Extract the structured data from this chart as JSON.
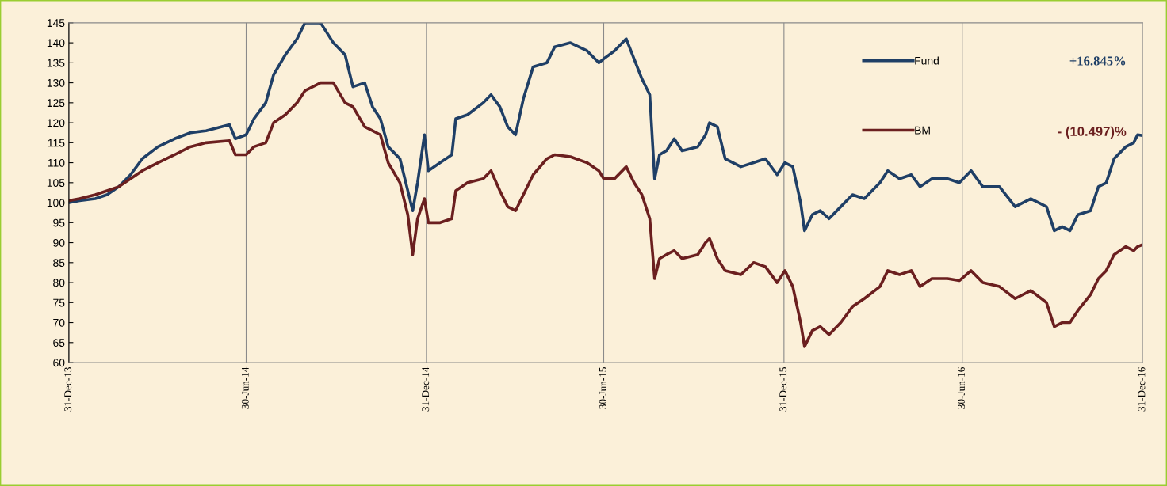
{
  "chart_data": {
    "type": "line",
    "x": [
      "2013-12-31",
      "2014-01-11",
      "2014-01-27",
      "2014-02-08",
      "2014-02-20",
      "2014-03-04",
      "2014-03-16",
      "2014-04-01",
      "2014-04-18",
      "2014-05-04",
      "2014-05-20",
      "2014-06-13",
      "2014-06-19",
      "2014-06-30",
      "2014-07-08",
      "2014-07-20",
      "2014-07-28",
      "2014-08-09",
      "2014-08-21",
      "2014-08-29",
      "2014-09-14",
      "2014-09-27",
      "2014-10-09",
      "2014-10-17",
      "2014-10-29",
      "2014-11-06",
      "2014-11-14",
      "2014-11-22",
      "2014-12-04",
      "2014-12-12",
      "2014-12-17",
      "2014-12-22",
      "2014-12-29",
      "2015-01-02",
      "2015-01-14",
      "2015-01-26",
      "2015-01-30",
      "2015-02-11",
      "2015-02-27",
      "2015-03-07",
      "2015-03-16",
      "2015-03-24",
      "2015-04-01",
      "2015-04-09",
      "2015-04-19",
      "2015-05-03",
      "2015-05-11",
      "2015-05-27",
      "2015-06-13",
      "2015-06-25",
      "2015-06-30",
      "2015-07-11",
      "2015-07-23",
      "2015-07-31",
      "2015-08-08",
      "2015-08-16",
      "2015-08-21",
      "2015-08-26",
      "2015-09-02",
      "2015-09-10",
      "2015-09-18",
      "2015-10-04",
      "2015-10-12",
      "2015-10-16",
      "2015-10-24",
      "2015-11-01",
      "2015-11-17",
      "2015-11-30",
      "2015-12-12",
      "2015-12-24",
      "2016-01-01",
      "2016-01-09",
      "2016-01-17",
      "2016-01-21",
      "2016-01-29",
      "2016-02-06",
      "2016-02-15",
      "2016-02-27",
      "2016-03-10",
      "2016-03-22",
      "2016-04-07",
      "2016-04-15",
      "2016-04-27",
      "2016-05-09",
      "2016-05-18",
      "2016-05-30",
      "2016-06-15",
      "2016-06-27",
      "2016-07-09",
      "2016-07-21",
      "2016-08-07",
      "2016-08-23",
      "2016-09-08",
      "2016-09-24",
      "2016-10-02",
      "2016-10-10",
      "2016-10-18",
      "2016-10-26",
      "2016-11-08",
      "2016-11-16",
      "2016-11-24",
      "2016-12-02",
      "2016-12-14",
      "2016-12-22",
      "2016-12-26",
      "2016-12-31"
    ],
    "series": [
      {
        "name": "Fund",
        "color": "#1f3f66",
        "values": [
          100,
          100.5,
          101,
          102,
          104,
          107,
          111,
          114,
          116,
          117.5,
          118,
          119.5,
          116,
          117,
          121,
          125,
          132,
          137,
          141,
          145,
          145,
          140,
          137,
          129,
          130,
          124,
          121,
          114,
          111,
          103,
          98,
          105,
          117,
          108,
          110,
          112,
          121,
          122,
          125,
          127,
          124,
          119,
          117,
          126,
          134,
          135,
          139,
          140,
          138,
          135,
          136,
          138,
          141,
          136,
          131,
          127,
          106,
          112,
          113,
          116,
          113,
          114,
          117,
          120,
          119,
          111,
          109,
          110,
          111,
          107,
          110,
          109,
          100,
          93,
          97,
          98,
          96,
          99,
          102,
          101,
          105,
          108,
          106,
          107,
          104,
          106,
          106,
          105,
          108,
          104,
          104,
          99,
          101,
          99,
          93,
          94,
          93,
          97,
          98,
          104,
          105,
          111,
          114,
          115,
          117,
          116.8
        ]
      },
      {
        "name": "BM",
        "color": "#6b1f1f",
        "values": [
          100.5,
          101,
          102,
          103,
          104,
          106,
          108,
          110,
          112,
          114,
          115,
          115.5,
          112,
          112,
          114,
          115,
          120,
          122,
          125,
          128,
          130,
          130,
          125,
          124,
          119,
          118,
          117,
          110,
          105,
          97,
          87,
          96,
          101,
          95,
          95,
          96,
          103,
          105,
          106,
          108,
          103,
          99,
          98,
          102,
          107,
          111,
          112,
          111.5,
          110,
          108,
          106,
          106,
          109,
          105,
          102,
          96,
          81,
          86,
          87,
          88,
          86,
          87,
          90,
          91,
          86,
          83,
          82,
          85,
          84,
          80,
          83,
          79,
          70,
          64,
          68,
          69,
          67,
          70,
          74,
          76,
          79,
          83,
          82,
          83,
          79,
          81,
          81,
          80.5,
          83,
          80,
          79,
          76,
          78,
          75,
          69,
          70,
          70,
          73,
          77,
          81,
          83,
          87,
          89,
          88,
          89,
          89.5
        ]
      }
    ],
    "xlim": [
      "2013-12-31",
      "2016-12-31"
    ],
    "xticks": [
      {
        "value": "2013-12-31",
        "label": "31-Dec-13"
      },
      {
        "value": "2014-06-30",
        "label": "30-Jun-14"
      },
      {
        "value": "2014-12-31",
        "label": "31-Dec-14"
      },
      {
        "value": "2015-06-30",
        "label": "30-Jun-15"
      },
      {
        "value": "2015-12-31",
        "label": "31-Dec-15"
      },
      {
        "value": "2016-06-30",
        "label": "30-Jun-16"
      },
      {
        "value": "2016-12-31",
        "label": "31-Dec-16"
      }
    ],
    "ylim": [
      60,
      145
    ],
    "yticks": [
      60,
      65,
      70,
      75,
      80,
      85,
      90,
      95,
      100,
      105,
      110,
      115,
      120,
      125,
      130,
      135,
      140,
      145
    ],
    "grid": "x",
    "legend": "top right",
    "annotations": [
      "+16.845%",
      "- (10.497)%"
    ]
  }
}
